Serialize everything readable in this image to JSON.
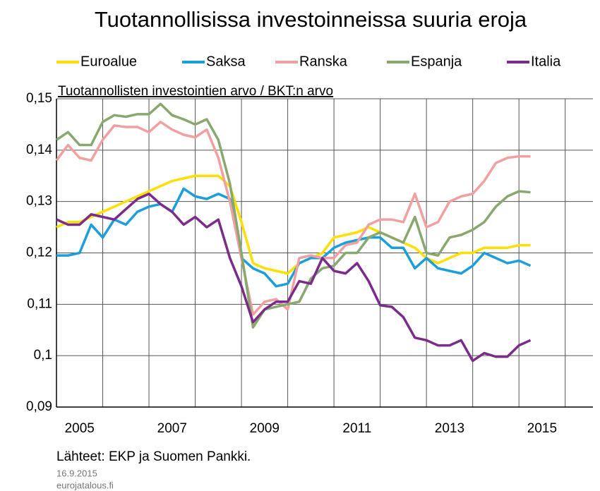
{
  "chart_data": {
    "type": "line",
    "title": "Tuotannollisissa investoinneissa suuria eroja",
    "subtitle": "Tuotannollisten investointien arvo / BKT:n arvo",
    "source": "Lähteet: EKP ja Suomen Pankki.",
    "date": "16.9.2015",
    "site": "eurojatalous.fi",
    "x": [
      2005,
      2005.25,
      2005.5,
      2005.75,
      2006,
      2006.25,
      2006.5,
      2006.75,
      2007,
      2007.25,
      2007.5,
      2007.75,
      2008,
      2008.25,
      2008.5,
      2008.75,
      2009,
      2009.25,
      2009.5,
      2009.75,
      2010,
      2010.25,
      2010.5,
      2010.75,
      2011,
      2011.25,
      2011.5,
      2011.75,
      2012,
      2012.25,
      2012.5,
      2012.75,
      2013,
      2013.25,
      2013.5,
      2013.75,
      2014,
      2014.25,
      2014.5,
      2014.75,
      2015,
      2015.25
    ],
    "series": [
      {
        "name": "Euroalue",
        "color": "#ffdf00",
        "values": [
          0.125,
          0.126,
          0.126,
          0.127,
          0.128,
          0.129,
          0.13,
          0.131,
          0.132,
          0.133,
          0.134,
          0.1345,
          0.135,
          0.135,
          0.135,
          0.133,
          0.126,
          0.118,
          0.117,
          0.1165,
          0.116,
          0.118,
          0.119,
          0.12,
          0.123,
          0.1235,
          0.124,
          0.125,
          0.124,
          0.123,
          0.122,
          0.121,
          0.119,
          0.118,
          0.119,
          0.12,
          0.12,
          0.121,
          0.121,
          0.121,
          0.1215,
          0.1215
        ]
      },
      {
        "name": "Saksa",
        "color": "#1a9fdb",
        "values": [
          0.1195,
          0.1195,
          0.12,
          0.1255,
          0.123,
          0.1265,
          0.1255,
          0.128,
          0.129,
          0.1295,
          0.128,
          0.1325,
          0.131,
          0.1305,
          0.1315,
          0.1305,
          0.119,
          0.117,
          0.116,
          0.1135,
          0.114,
          0.118,
          0.119,
          0.119,
          0.121,
          0.122,
          0.1225,
          0.123,
          0.123,
          0.121,
          0.121,
          0.117,
          0.119,
          0.117,
          0.1165,
          0.116,
          0.1175,
          0.12,
          0.119,
          0.118,
          0.1185,
          0.1175
        ]
      },
      {
        "name": "Ranska",
        "color": "#f0a0a0",
        "values": [
          0.138,
          0.141,
          0.1385,
          0.138,
          0.142,
          0.1448,
          0.1445,
          0.1445,
          0.1435,
          0.1455,
          0.144,
          0.143,
          0.1425,
          0.144,
          0.1385,
          0.13,
          0.119,
          0.108,
          0.1105,
          0.111,
          0.109,
          0.119,
          0.1195,
          0.119,
          0.119,
          0.1215,
          0.122,
          0.1255,
          0.1265,
          0.1265,
          0.126,
          0.1315,
          0.125,
          0.126,
          0.13,
          0.131,
          0.1315,
          0.134,
          0.1375,
          0.1385,
          0.1388,
          0.1388
        ]
      },
      {
        "name": "Espanja",
        "color": "#88a870",
        "values": [
          0.142,
          0.1435,
          0.141,
          0.141,
          0.1455,
          0.1468,
          0.1465,
          0.147,
          0.147,
          0.149,
          0.1468,
          0.146,
          0.145,
          0.146,
          0.142,
          0.1335,
          0.12,
          0.1055,
          0.109,
          0.1095,
          0.11,
          0.1105,
          0.115,
          0.117,
          0.1175,
          0.12,
          0.12,
          0.123,
          0.124,
          0.123,
          0.122,
          0.127,
          0.12,
          0.1195,
          0.123,
          0.1235,
          0.1245,
          0.126,
          0.129,
          0.131,
          0.132,
          0.1318
        ]
      },
      {
        "name": "Italia",
        "color": "#7b2b8a",
        "values": [
          0.1265,
          0.1255,
          0.1255,
          0.1275,
          0.127,
          0.1265,
          0.1285,
          0.1305,
          0.1315,
          0.1295,
          0.128,
          0.1255,
          0.127,
          0.125,
          0.1265,
          0.119,
          0.1135,
          0.1065,
          0.109,
          0.1105,
          0.1105,
          0.1145,
          0.114,
          0.119,
          0.1165,
          0.116,
          0.118,
          0.1145,
          0.1098,
          0.1095,
          0.1075,
          0.1035,
          0.103,
          0.102,
          0.102,
          0.103,
          0.099,
          0.1005,
          0.0998,
          0.0998,
          0.102,
          0.103
        ]
      }
    ],
    "xlim": [
      2005,
      2016.6
    ],
    "xticks": [
      {
        "value": 2005.5,
        "label": "2005"
      },
      {
        "value": 2007.5,
        "label": "2007"
      },
      {
        "value": 2009.5,
        "label": "2009"
      },
      {
        "value": 2011.5,
        "label": "2011"
      },
      {
        "value": 2013.5,
        "label": "2013"
      },
      {
        "value": 2015.5,
        "label": "2015"
      }
    ],
    "xgrid": [
      2006,
      2007,
      2008,
      2009,
      2010,
      2011,
      2012,
      2013,
      2014,
      2015,
      2016
    ],
    "ylim": [
      0.09,
      0.15
    ],
    "yticks": [
      {
        "value": 0.09,
        "label": "0,09"
      },
      {
        "value": 0.1,
        "label": "0,1"
      },
      {
        "value": 0.11,
        "label": "0,11"
      },
      {
        "value": 0.12,
        "label": "0,12"
      },
      {
        "value": 0.13,
        "label": "0,13"
      },
      {
        "value": 0.14,
        "label": "0,14"
      },
      {
        "value": 0.15,
        "label": "0,15"
      }
    ],
    "grid": true
  }
}
